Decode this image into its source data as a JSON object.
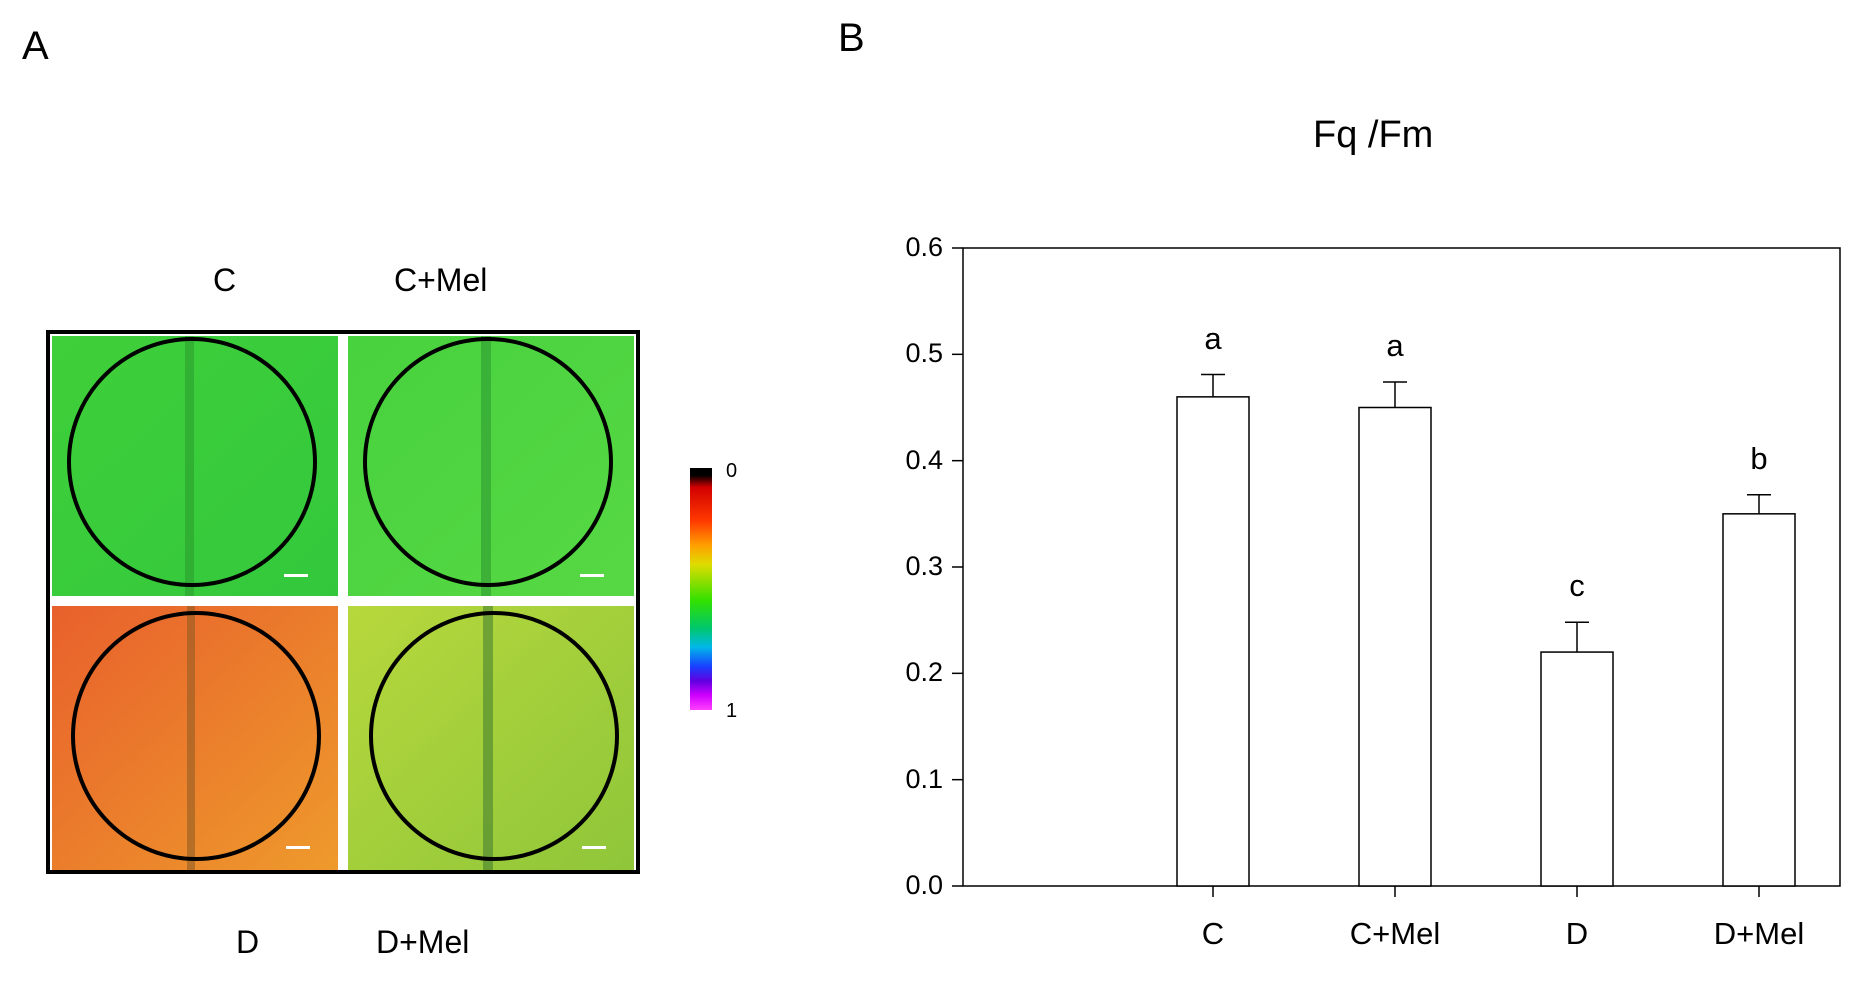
{
  "panels": {
    "a": {
      "letter": "A",
      "column_labels": [
        "C",
        "C+Mel"
      ],
      "row_labels": [
        "D",
        "D+Mel"
      ],
      "tiles": [
        {
          "name": "C",
          "color_top": "#3fcf3a",
          "color_bottom": "#33c83c",
          "vein": "#2a9a2e"
        },
        {
          "name": "C+Mel",
          "color_top": "#48d23e",
          "color_bottom": "#56d844",
          "vein": "#2c9430"
        },
        {
          "name": "D",
          "color_top": "#e8602c",
          "color_bottom": "#ee9a2c",
          "vein": "#8a5a22"
        },
        {
          "name": "D+Mel",
          "color_top": "#b7d83c",
          "color_bottom": "#8fc63a",
          "vein": "#3e7a2e"
        }
      ],
      "colorbar": {
        "min_label": "0",
        "max_label": "1"
      }
    },
    "b": {
      "letter": "B"
    }
  },
  "chart_data": {
    "type": "bar",
    "title": "Fq /Fm",
    "categories": [
      "C",
      "C+Mel",
      "D",
      "D+Mel"
    ],
    "values": [
      0.46,
      0.45,
      0.22,
      0.35
    ],
    "errors": [
      0.021,
      0.024,
      0.028,
      0.018
    ],
    "significance": [
      "a",
      "a",
      "c",
      "b"
    ],
    "ylim": [
      0.0,
      0.6
    ],
    "yticks": [
      "0.0",
      "0.1",
      "0.2",
      "0.3",
      "0.4",
      "0.5",
      "0.6"
    ],
    "xlabel": "",
    "ylabel": "",
    "grid": false
  }
}
